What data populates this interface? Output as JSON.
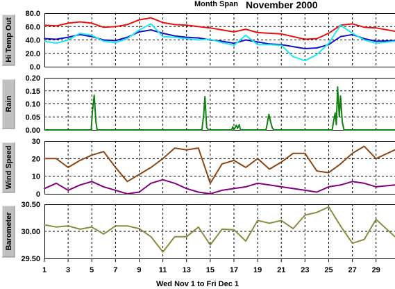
{
  "header": {
    "span_label": "Month Span",
    "month_label": "November 2000"
  },
  "footer": {
    "range_label": "Wed Nov 1  to  Fri Dec 1"
  },
  "chart_data": [
    {
      "type": "line",
      "panel": "temperature",
      "ylabel": "Hi Temp Out",
      "ylim": [
        0,
        80
      ],
      "yticks": [
        "0.0",
        "20.0",
        "40.0",
        "60.0",
        "80.0"
      ],
      "xlim": [
        1,
        30.6
      ],
      "series": [
        {
          "color": "#e81010",
          "x": [
            1,
            2,
            3,
            4,
            5,
            6,
            7,
            8,
            9,
            10,
            11,
            12,
            13,
            14,
            15,
            16,
            17,
            18,
            19,
            20,
            21,
            22,
            23,
            24,
            25,
            26,
            27,
            28,
            29,
            30.6
          ],
          "values": [
            62,
            61,
            65,
            67,
            65,
            59,
            60,
            63,
            70,
            73,
            66,
            63,
            62,
            60,
            58,
            55,
            52,
            56,
            51,
            50,
            49,
            45,
            41,
            42,
            50,
            62,
            64,
            59,
            58,
            53
          ]
        },
        {
          "color": "#1010c8",
          "x": [
            1,
            2,
            3,
            4,
            5,
            6,
            7,
            8,
            9,
            10,
            11,
            12,
            13,
            14,
            15,
            16,
            17,
            18,
            19,
            20,
            21,
            22,
            23,
            24,
            25,
            26,
            27,
            28,
            29,
            30.6
          ],
          "values": [
            42,
            41,
            44,
            48,
            45,
            40,
            39,
            44,
            52,
            55,
            50,
            46,
            44,
            43,
            40,
            38,
            35,
            40,
            37,
            34,
            33,
            30,
            27,
            28,
            33,
            45,
            48,
            42,
            38,
            39
          ]
        },
        {
          "color": "#20e8f0",
          "x": [
            1,
            2,
            3,
            4,
            5,
            6,
            7,
            8,
            9,
            10,
            11,
            12,
            13,
            14,
            15,
            16,
            17,
            18,
            19,
            20,
            21,
            22,
            23,
            24,
            25,
            26,
            27,
            28,
            29,
            30.6
          ],
          "values": [
            38,
            35,
            40,
            50,
            47,
            38,
            36,
            42,
            55,
            64,
            45,
            44,
            42,
            40,
            41,
            36,
            32,
            47,
            33,
            33,
            32,
            15,
            9,
            18,
            35,
            62,
            50,
            40,
            35,
            38
          ]
        }
      ]
    },
    {
      "type": "line",
      "panel": "rain",
      "ylabel": "Rain",
      "ylim": [
        0,
        0.2
      ],
      "yticks": [
        "0.00",
        "0.05",
        "0.10",
        "0.15",
        "0.20"
      ],
      "xlim": [
        1,
        30.6
      ],
      "series": [
        {
          "color": "#108010",
          "x": [
            1,
            4.95,
            5.05,
            5.2,
            5.35,
            5.45,
            14.3,
            14.45,
            14.55,
            14.7,
            14.85,
            16.8,
            16.9,
            17.0,
            17.2,
            17.3,
            17.45,
            17.55,
            19.7,
            19.8,
            19.95,
            20.1,
            20.25,
            20.4,
            25.3,
            25.4,
            25.55,
            25.65,
            25.75,
            25.9,
            26.0,
            26.15,
            26.3,
            30.6
          ],
          "values": [
            0,
            0,
            0.07,
            0.133,
            0.03,
            0,
            0,
            0.06,
            0.128,
            0.01,
            0,
            0,
            0.012,
            0,
            0.018,
            0.006,
            0.02,
            0,
            0,
            0.02,
            0.06,
            0.03,
            0.007,
            0,
            0,
            0.03,
            0.065,
            0.02,
            0.165,
            0.05,
            0.13,
            0.03,
            0,
            0
          ]
        }
      ]
    },
    {
      "type": "line",
      "panel": "wind",
      "ylabel": "Wind Speed",
      "ylim": [
        0,
        30
      ],
      "yticks": [
        "0",
        "10",
        "20",
        "30"
      ],
      "xlim": [
        1,
        30.6
      ],
      "series": [
        {
          "color": "#8b4513",
          "x": [
            1,
            2,
            3,
            4,
            5,
            6,
            7,
            8,
            9,
            10,
            11,
            12,
            13,
            14,
            15,
            16,
            17,
            18,
            19,
            20,
            21,
            22,
            23,
            24,
            25,
            26,
            27,
            28,
            29,
            30.6
          ],
          "values": [
            20,
            20,
            15,
            19,
            22,
            24,
            15,
            7,
            11,
            15,
            20,
            26,
            25,
            26,
            6,
            17,
            19,
            15,
            20,
            14,
            18,
            23,
            23,
            13,
            12,
            17,
            23,
            27,
            20,
            25
          ]
        },
        {
          "color": "#800080",
          "x": [
            1,
            2,
            3,
            4,
            5,
            6,
            7,
            8,
            9,
            10,
            11,
            12,
            13,
            14,
            15,
            16,
            17,
            18,
            19,
            20,
            21,
            22,
            23,
            24,
            25,
            26,
            27,
            28,
            29,
            30.6
          ],
          "values": [
            3,
            6,
            2,
            5,
            7,
            4,
            2,
            0,
            1,
            6,
            8,
            6,
            3,
            1,
            0,
            2,
            3,
            4,
            6,
            5,
            4,
            3,
            2,
            1,
            4,
            5,
            7,
            6,
            4,
            5
          ]
        }
      ]
    },
    {
      "type": "line",
      "panel": "barometer",
      "ylabel": "Barometer",
      "ylim": [
        29.5,
        30.5
      ],
      "yticks": [
        "29.50",
        "30.00",
        "30.50"
      ],
      "xlim": [
        1,
        30.6
      ],
      "series": [
        {
          "color": "#8a8a40",
          "x": [
            1,
            2,
            3,
            4,
            5,
            6,
            7,
            8,
            9,
            10,
            11,
            12,
            13,
            14,
            15,
            16,
            17,
            18,
            19,
            20,
            21,
            22,
            23,
            24,
            25,
            26,
            27,
            28,
            29,
            30.6
          ],
          "values": [
            30.12,
            30.08,
            30.1,
            30.04,
            30.08,
            29.95,
            30.1,
            30.1,
            30.05,
            29.9,
            29.62,
            29.9,
            29.9,
            30.08,
            29.75,
            30.04,
            30.03,
            29.82,
            30.2,
            30.15,
            30.2,
            30.05,
            30.3,
            30.35,
            30.45,
            30.1,
            29.78,
            29.85,
            30.22,
            29.9
          ]
        }
      ]
    }
  ],
  "x_axis": {
    "ticks": [
      "1",
      "3",
      "5",
      "7",
      "9",
      "11",
      "13",
      "15",
      "17",
      "19",
      "21",
      "23",
      "25",
      "27",
      "29"
    ]
  }
}
